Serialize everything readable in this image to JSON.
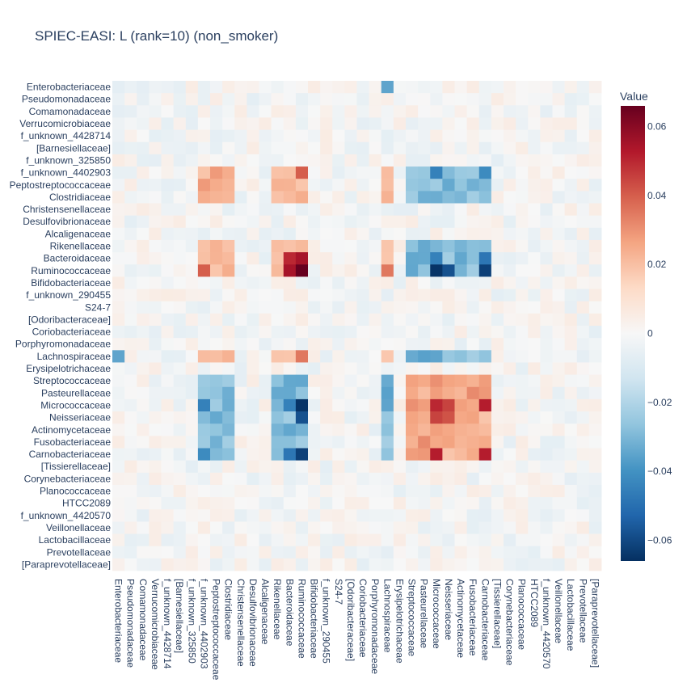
{
  "chart_data": {
    "type": "heatmap",
    "title": "SPIEC-EASI: L (rank=10) (non_smoker)",
    "colorbar_title": "Value",
    "colorscale": "RdBu (reversed)",
    "zlim": [
      -0.066,
      0.066
    ],
    "colorbar_ticks": [
      {
        "value": 0.06,
        "label": "0.06"
      },
      {
        "value": 0.04,
        "label": "0.04"
      },
      {
        "value": 0.02,
        "label": "0.02"
      },
      {
        "value": 0,
        "label": "0"
      },
      {
        "value": -0.02,
        "label": "−0.02"
      },
      {
        "value": -0.04,
        "label": "−0.04"
      },
      {
        "value": -0.06,
        "label": "−0.06"
      }
    ],
    "taxa": [
      "Enterobacteriaceae",
      "Pseudomonadaceae",
      "Comamonadaceae",
      "Verrucomicrobiaceae",
      "f_unknown_4428714",
      "[Barnesiellaceae]",
      "f_unknown_325850",
      "f_unknown_4402903",
      "Peptostreptococcaceae",
      "Clostridiaceae",
      "Christensenellaceae",
      "Desulfovibrionaceae",
      "Alcaligenaceae",
      "Rikenellaceae",
      "Bacteroidaceae",
      "Ruminococcaceae",
      "Bifidobacteriaceae",
      "f_unknown_290455",
      "S24-7",
      "[Odoribacteraceae]",
      "Coriobacteriaceae",
      "Porphyromonadaceae",
      "Lachnospiraceae",
      "Erysipelotrichaceae",
      "Streptococcaceae",
      "Pasteurellaceae",
      "Micrococcaceae",
      "Neisseriaceae",
      "Actinomycetaceae",
      "Fusobacteriaceae",
      "Carnobacteriaceae",
      "[Tissierellaceae]",
      "Corynebacteriaceae",
      "Planococcaceae",
      "HTCC2089",
      "f_unknown_4420570",
      "Veillonellaceae",
      "Lactobacillaceae",
      "Prevotellaceae",
      "[Paraprevotellaceae]"
    ],
    "groups": {
      "description_values": "Approximate block structure of the matrix (values in data units)",
      "A": [
        7,
        8,
        9,
        13,
        14,
        15,
        22
      ],
      "B": [
        24,
        25,
        26,
        27,
        28,
        29,
        30
      ],
      "strong_pairs": [
        [
          15,
          15,
          0.066
        ],
        [
          14,
          14,
          0.05
        ],
        [
          14,
          15,
          0.055
        ],
        [
          7,
          15,
          0.04
        ],
        [
          15,
          22,
          0.035
        ],
        [
          26,
          26,
          0.05
        ],
        [
          26,
          30,
          0.052
        ],
        [
          30,
          30,
          0.052
        ],
        [
          26,
          27,
          0.045
        ],
        [
          27,
          27,
          0.042
        ],
        [
          15,
          26,
          -0.065
        ],
        [
          15,
          27,
          -0.058
        ],
        [
          15,
          30,
          -0.062
        ],
        [
          14,
          26,
          -0.045
        ],
        [
          14,
          30,
          -0.048
        ],
        [
          7,
          26,
          -0.045
        ],
        [
          7,
          30,
          -0.042
        ],
        [
          22,
          26,
          -0.035
        ],
        [
          0,
          22,
          -0.035
        ],
        [
          22,
          0,
          -0.035
        ]
      ]
    }
  }
}
